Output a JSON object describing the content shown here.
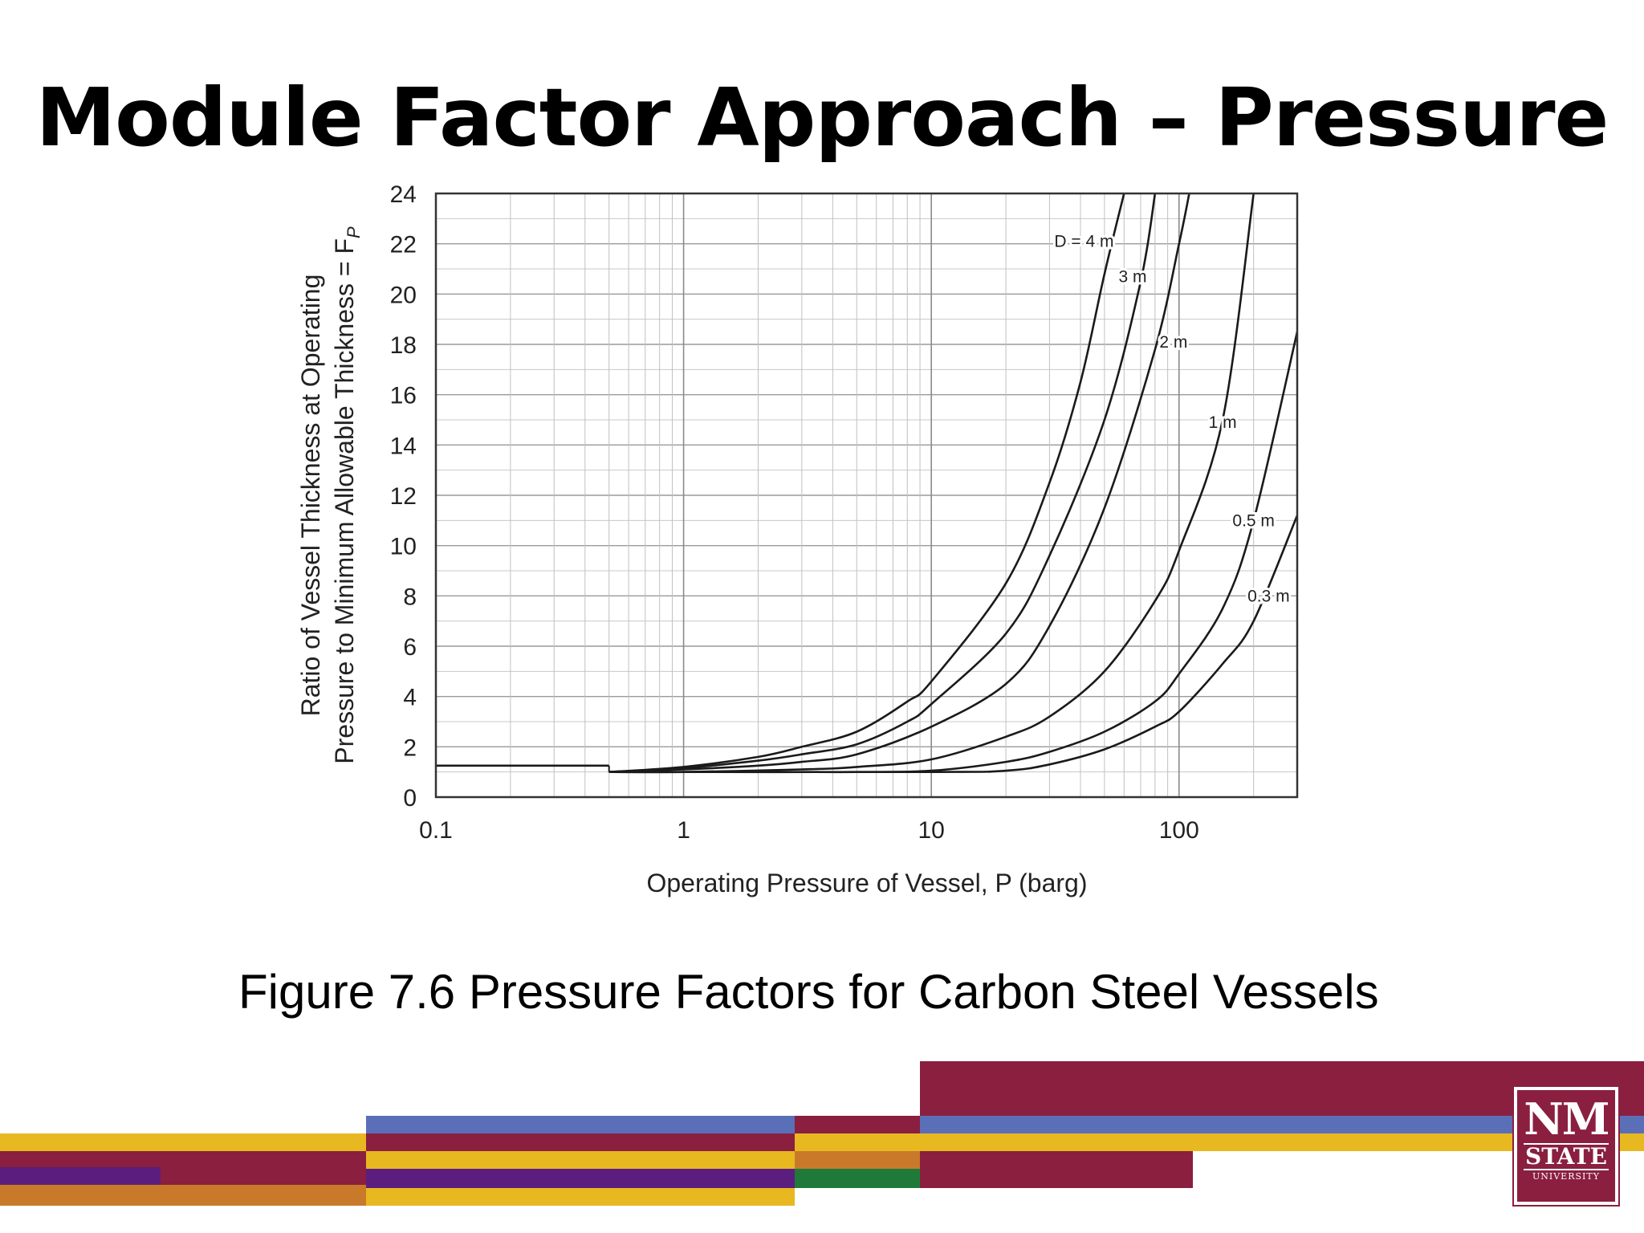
{
  "slide": {
    "title": "Module Factor Approach – Pressure",
    "caption": "Figure 7.6 Pressure Factors for Carbon Steel Vessels"
  },
  "colors": {
    "maroon": "#8a1f40",
    "gold": "#e8b820",
    "blue": "#5a6fb8",
    "purple": "#5c1e7e",
    "green": "#1f7a3a",
    "orange": "#c87a2a"
  },
  "chart_data": {
    "type": "line",
    "x_scale": "log",
    "xlim": [
      0.1,
      300
    ],
    "ylim": [
      0,
      24
    ],
    "xticks": [
      "0.1",
      "1",
      "10",
      "100"
    ],
    "yticks": [
      "0",
      "2",
      "4",
      "6",
      "8",
      "10",
      "12",
      "14",
      "16",
      "18",
      "20",
      "22",
      "24"
    ],
    "xlabel": "Operating Pressure of Vessel, P (barg)",
    "ylabel_line1": "Ratio of Vessel Thickness at Operating",
    "ylabel_line2": "Pressure to Minimum Allowable Thickness = F",
    "ylabel_sub": "P",
    "grid": true,
    "low_pressure_segment": {
      "x": [
        0.1,
        0.5
      ],
      "y": [
        1.25,
        1.25
      ]
    },
    "series": [
      {
        "name": "D = 4 m",
        "x": [
          0.5,
          1,
          2,
          3,
          5,
          8,
          10,
          20,
          30,
          40,
          50,
          60
        ],
        "y": [
          1.0,
          1.2,
          1.6,
          2.0,
          2.6,
          3.8,
          4.6,
          8.5,
          12.5,
          16.5,
          20.8,
          24.0
        ]
      },
      {
        "name": "3 m",
        "x": [
          0.5,
          1,
          2,
          3,
          5,
          8,
          10,
          20,
          30,
          50,
          70,
          80
        ],
        "y": [
          1.0,
          1.15,
          1.45,
          1.7,
          2.1,
          3.0,
          3.7,
          6.5,
          9.6,
          15.0,
          20.5,
          24.0
        ]
      },
      {
        "name": "2 m",
        "x": [
          0.5,
          1,
          2,
          3,
          5,
          10,
          20,
          30,
          50,
          80,
          100,
          110
        ],
        "y": [
          1.0,
          1.1,
          1.25,
          1.4,
          1.7,
          2.8,
          4.5,
          6.8,
          11.5,
          17.8,
          22.0,
          24.0
        ]
      },
      {
        "name": "1 m",
        "x": [
          0.5,
          1,
          3,
          5,
          10,
          20,
          30,
          50,
          80,
          100,
          150,
          200
        ],
        "y": [
          1.0,
          1.0,
          1.1,
          1.2,
          1.5,
          2.4,
          3.2,
          5.0,
          7.8,
          9.8,
          15.0,
          24.0
        ]
      },
      {
        "name": "0.5 m",
        "x": [
          0.5,
          3,
          5,
          10,
          20,
          30,
          50,
          80,
          100,
          150,
          200,
          300
        ],
        "y": [
          1.0,
          1.0,
          1.0,
          1.05,
          1.4,
          1.8,
          2.6,
          3.8,
          4.9,
          7.5,
          11.0,
          18.5
        ]
      },
      {
        "name": "0.3 m",
        "x": [
          0.5,
          10,
          20,
          30,
          50,
          80,
          100,
          150,
          200,
          300
        ],
        "y": [
          1.0,
          1.0,
          1.05,
          1.3,
          1.9,
          2.8,
          3.4,
          5.3,
          7.0,
          11.2
        ]
      }
    ]
  }
}
